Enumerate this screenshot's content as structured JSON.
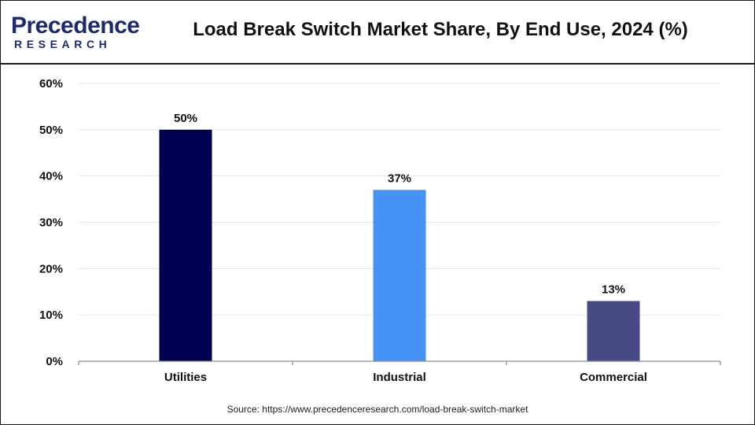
{
  "header": {
    "logo_main": "Precedence",
    "logo_sub": "RESEARCH",
    "title": "Load Break Switch Market Share, By End Use, 2024 (%)"
  },
  "footer": {
    "source": "Source: https://www.precedenceresearch.com/load-break-switch-market"
  },
  "colors": {
    "utilities": "#000050",
    "industrial": "#4493f5",
    "commercial": "#484a86",
    "grid": "#e6e6e6",
    "axis": "#8c8c8c",
    "logo": "#1e2a6e"
  },
  "chart_data": {
    "type": "bar",
    "title": "Load Break Switch Market Share, By End Use, 2024 (%)",
    "categories": [
      "Utilities",
      "Industrial",
      "Commercial"
    ],
    "values": [
      50,
      37,
      13
    ],
    "data_labels": [
      "50%",
      "37%",
      "13%"
    ],
    "bar_colors": [
      "#000050",
      "#4493f5",
      "#484a86"
    ],
    "ylim": [
      0,
      60
    ],
    "yticks": [
      0,
      10,
      20,
      30,
      40,
      50,
      60
    ],
    "ytick_labels": [
      "0%",
      "10%",
      "20%",
      "30%",
      "40%",
      "50%",
      "60%"
    ],
    "xlabel": "",
    "ylabel": "",
    "grid": true,
    "legend": "none"
  }
}
